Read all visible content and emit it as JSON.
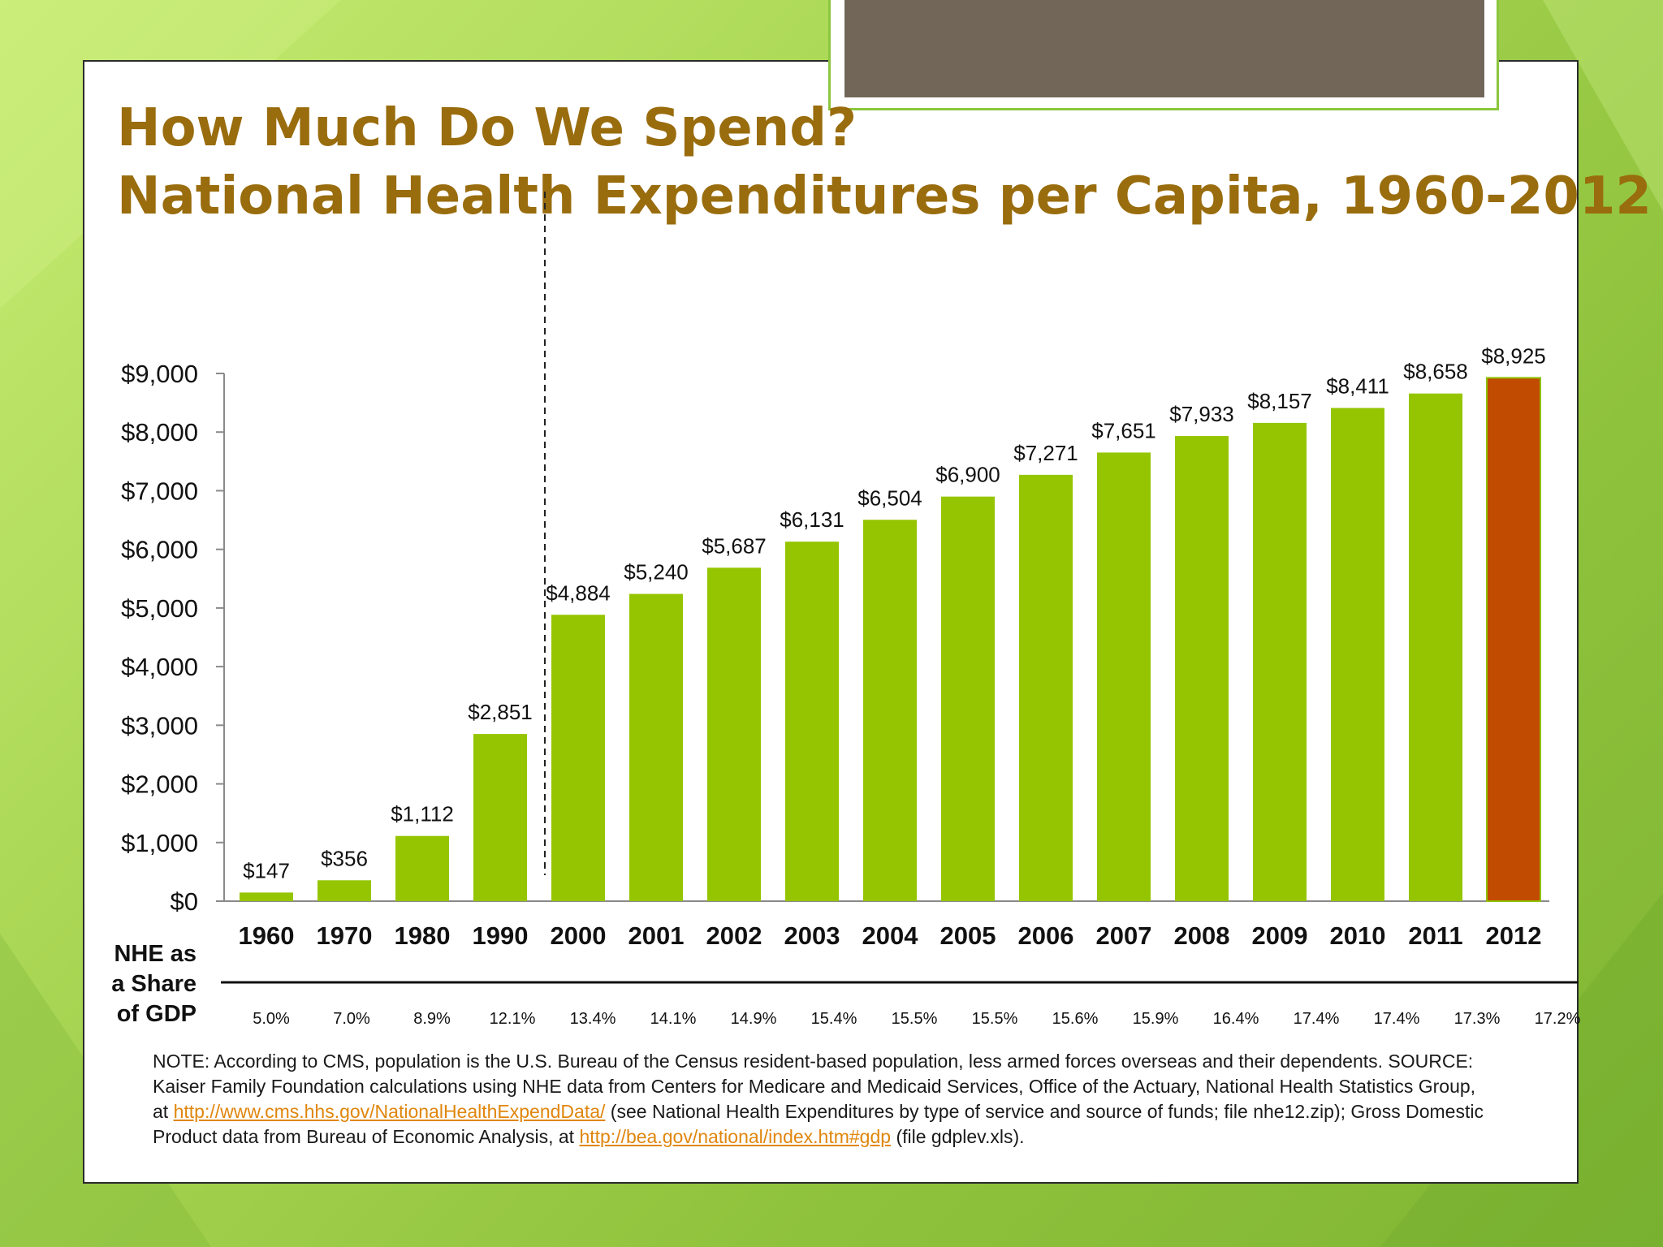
{
  "slide": {
    "title_line1": "How Much Do We Spend?",
    "title_line2": "National Health Expenditures per Capita, 1960-2012",
    "note_text_1": "NOTE: According to CMS, population is the U.S. Bureau of the Census resident-based population, less armed forces overseas and their dependents. SOURCE: Kaiser Family Foundation calculations using NHE data from Centers for Medicare and Medicaid Services, Office of the Actuary, National Health Statistics Group, at ",
    "note_link_1": "http://www.cms.hhs.gov/NationalHealthExpendData/",
    "note_text_2": " (see National Health Expenditures by type of service and source of funds; file nhe12.zip); Gross Domestic Product data from Bureau of Economic Analysis, at ",
    "note_link_2": "http://bea.gov/national/index.htm#gdp",
    "note_text_3": " (file gdplev.xls)."
  },
  "colors": {
    "title": "#996c0d",
    "bar": "#95c500",
    "highlight_bar": "#c14b00",
    "link": "#e0860d",
    "header_box": "#726659"
  },
  "chart_data": {
    "type": "bar",
    "title": "National Health Expenditures per Capita, 1960-2012",
    "categories": [
      "1960",
      "1970",
      "1980",
      "1990",
      "2000",
      "2001",
      "2002",
      "2003",
      "2004",
      "2005",
      "2006",
      "2007",
      "2008",
      "2009",
      "2010",
      "2011",
      "2012"
    ],
    "values": [
      147,
      356,
      1112,
      2851,
      4884,
      5240,
      5687,
      6131,
      6504,
      6900,
      7271,
      7651,
      7933,
      8157,
      8411,
      8658,
      8925
    ],
    "value_labels": [
      "$147",
      "$356",
      "$1,112",
      "$2,851",
      "$4,884",
      "$5,240",
      "$5,687",
      "$6,131",
      "$6,504",
      "$6,900",
      "$7,271",
      "$7,651",
      "$7,933",
      "$8,157",
      "$8,411",
      "$8,658",
      "$8,925"
    ],
    "highlight_category": "2012",
    "ylim": [
      0,
      9000
    ],
    "y_ticks": [
      0,
      1000,
      2000,
      3000,
      4000,
      5000,
      6000,
      7000,
      8000,
      9000
    ],
    "y_tick_labels": [
      "$0",
      "$1,000",
      "$2,000",
      "$3,000",
      "$4,000",
      "$5,000",
      "$6,000",
      "$7,000",
      "$8,000",
      "$9,000"
    ],
    "xlabel": "",
    "ylabel": "",
    "grid": false,
    "divider_after_category": "1990",
    "gdp_share_label": "NHE as a Share of GDP",
    "gdp_share_label_lines": [
      "NHE as",
      "a Share",
      "of GDP"
    ],
    "gdp_share": [
      "5.0%",
      "7.0%",
      "8.9%",
      "12.1%",
      "13.4%",
      "14.1%",
      "14.9%",
      "15.4%",
      "15.5%",
      "15.5%",
      "15.6%",
      "15.9%",
      "16.4%",
      "17.4%",
      "17.4%",
      "17.3%",
      "17.2%"
    ]
  }
}
